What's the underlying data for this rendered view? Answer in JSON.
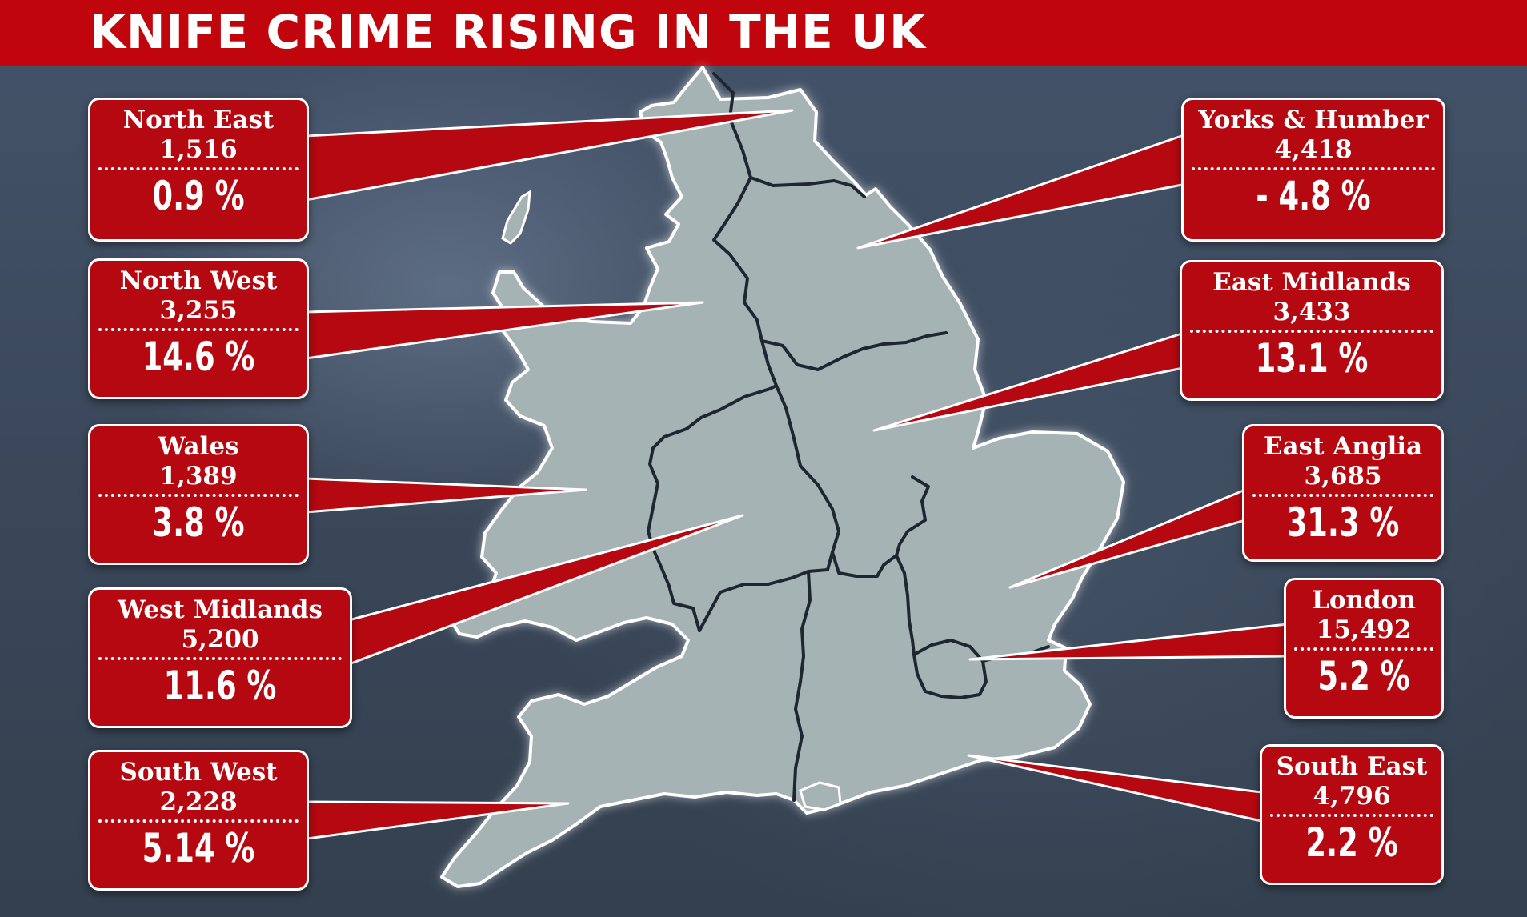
{
  "title": "KNIFE CRIME RISING IN THE UK",
  "colors": {
    "label_fill": "#b50810",
    "title_bar": "#c0050c",
    "land": "#a6b3b5"
  },
  "regions": [
    {
      "id": "north-east",
      "name": "North East",
      "count": "1,516",
      "change": "0.9 %"
    },
    {
      "id": "north-west",
      "name": "North West",
      "count": "3,255",
      "change": "14.6 %"
    },
    {
      "id": "wales",
      "name": "Wales",
      "count": "1,389",
      "change": "3.8 %"
    },
    {
      "id": "west-midlands",
      "name": "West Midlands",
      "count": "5,200",
      "change": "11.6 %"
    },
    {
      "id": "south-west",
      "name": "South West",
      "count": "2,228",
      "change": "5.14 %"
    },
    {
      "id": "yorks-humber",
      "name": "Yorks & Humber",
      "count": "4,418",
      "change": "- 4.8 %"
    },
    {
      "id": "east-midlands",
      "name": "East Midlands",
      "count": "3,433",
      "change": "13.1 %"
    },
    {
      "id": "east-anglia",
      "name": "East Anglia",
      "count": "3,685",
      "change": "31.3 %"
    },
    {
      "id": "london",
      "name": "London",
      "count": "15,492",
      "change": "5.2 %"
    },
    {
      "id": "south-east",
      "name": "South East",
      "count": "4,796",
      "change": "2.2 %"
    }
  ]
}
